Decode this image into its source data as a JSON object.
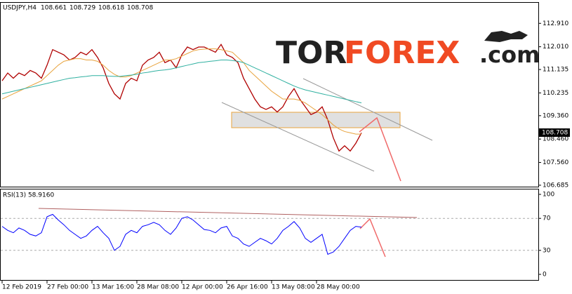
{
  "chart_data": [
    {
      "type": "line",
      "title": "USDJPY,H4",
      "ohlc": [
        108.661,
        108.729,
        108.618,
        108.708
      ],
      "series": [
        {
          "name": "USDJPY",
          "color": "#b00000",
          "values": [
            110.7,
            111.0,
            110.8,
            111.0,
            110.9,
            111.1,
            111.0,
            110.8,
            111.3,
            111.9,
            111.8,
            111.7,
            111.5,
            111.6,
            111.8,
            111.7,
            111.9,
            111.6,
            111.2,
            110.6,
            110.2,
            110.0,
            110.6,
            110.8,
            110.7,
            111.3,
            111.5,
            111.6,
            111.8,
            111.4,
            111.5,
            111.2,
            111.7,
            112.0,
            111.9,
            112.0,
            112.0,
            111.9,
            111.8,
            112.1,
            111.7,
            111.6,
            111.4,
            110.8,
            110.4,
            110.0,
            109.7,
            109.6,
            109.7,
            109.5,
            109.7,
            110.1,
            110.4,
            110.0,
            109.7,
            109.4,
            109.5,
            109.7,
            109.2,
            108.5,
            108.0,
            108.2,
            108.0,
            108.3,
            108.7
          ]
        },
        {
          "color": "#e8a33d",
          "values": [
            110.0,
            110.1,
            110.2,
            110.3,
            110.4,
            110.5,
            110.6,
            110.7,
            110.9,
            111.1,
            111.3,
            111.45,
            111.5,
            111.55,
            111.55,
            111.5,
            111.5,
            111.45,
            111.3,
            111.1,
            110.95,
            110.85,
            110.85,
            110.9,
            111.0,
            111.1,
            111.2,
            111.3,
            111.4,
            111.5,
            111.5,
            111.55,
            111.65,
            111.75,
            111.85,
            111.9,
            111.92,
            111.93,
            111.93,
            111.9,
            111.85,
            111.8,
            111.6,
            111.4,
            111.1,
            110.9,
            110.7,
            110.5,
            110.3,
            110.15,
            110.0,
            110.0,
            110.0,
            109.95,
            109.85,
            109.7,
            109.55,
            109.4,
            109.2,
            109.0,
            108.85,
            108.75,
            108.7,
            108.65,
            108.65
          ]
        },
        {
          "color": "#2fb0a0",
          "values": [
            110.2,
            110.25,
            110.3,
            110.35,
            110.4,
            110.45,
            110.5,
            110.55,
            110.6,
            110.65,
            110.7,
            110.75,
            110.8,
            110.82,
            110.85,
            110.87,
            110.9,
            110.9,
            110.9,
            110.88,
            110.87,
            110.87,
            110.9,
            110.92,
            110.95,
            111.0,
            111.03,
            111.07,
            111.1,
            111.12,
            111.15,
            111.2,
            111.25,
            111.3,
            111.35,
            111.4,
            111.42,
            111.45,
            111.47,
            111.5,
            111.5,
            111.48,
            111.45,
            111.4,
            111.3,
            111.2,
            111.1,
            111.0,
            110.9,
            110.8,
            110.7,
            110.6,
            110.5,
            110.42,
            110.35,
            110.3,
            110.25,
            110.2,
            110.15,
            110.1,
            110.05,
            110.0,
            109.95,
            109.9,
            109.85
          ]
        }
      ],
      "ylim": [
        106.63,
        113.7
      ],
      "yticks": [
        {
          "value": 112.91,
          "label": "112.910"
        },
        {
          "value": 112.01,
          "label": "112.010"
        },
        111.135,
        {
          "value": 110.235,
          "label": "110.235"
        },
        {
          "value": 109.36,
          "label": "109.360"
        },
        {
          "value": 108.46,
          "label": "108.460"
        },
        {
          "value": 107.56,
          "label": "107.560"
        },
        106.685
      ]
    },
    {
      "type": "line",
      "title": "RSI(13) 58.9160",
      "categories": [
        "12 Feb 2019",
        null,
        null,
        null,
        null,
        null,
        null,
        null,
        "27 Feb 00:00",
        null,
        null,
        null,
        null,
        null,
        null,
        null,
        "13 Mar 16:00",
        null,
        null,
        null,
        null,
        null,
        null,
        null,
        "28 Mar 08:00",
        null,
        null,
        null,
        null,
        null,
        null,
        null,
        "12 Apr 00:00",
        null,
        null,
        null,
        null,
        null,
        null,
        null,
        "26 Apr 16:00",
        null,
        null,
        null,
        null,
        null,
        null,
        null,
        "13 May 08:00",
        null,
        null,
        null,
        null,
        null,
        null,
        null,
        "28 May 00:00",
        null,
        null,
        null,
        null,
        null,
        null,
        null,
        null
      ],
      "series": [
        {
          "color": "#0000ff",
          "values": [
            60,
            55,
            52,
            58,
            55,
            50,
            48,
            52,
            72,
            75,
            68,
            62,
            55,
            50,
            45,
            48,
            55,
            60,
            52,
            45,
            30,
            35,
            50,
            55,
            52,
            60,
            62,
            65,
            62,
            55,
            50,
            58,
            70,
            72,
            68,
            62,
            56,
            55,
            52,
            58,
            60,
            48,
            45,
            38,
            35,
            40,
            45,
            42,
            38,
            45,
            55,
            60,
            66,
            58,
            45,
            40,
            45,
            50,
            25,
            28,
            35,
            45,
            55,
            60,
            59
          ]
        }
      ],
      "ylim": [
        0,
        100
      ],
      "yticks": [
        100,
        70,
        30,
        0
      ]
    }
  ],
  "logo": {
    "part1": "TOR",
    "part2": "FOREX",
    "part3": ".com"
  }
}
